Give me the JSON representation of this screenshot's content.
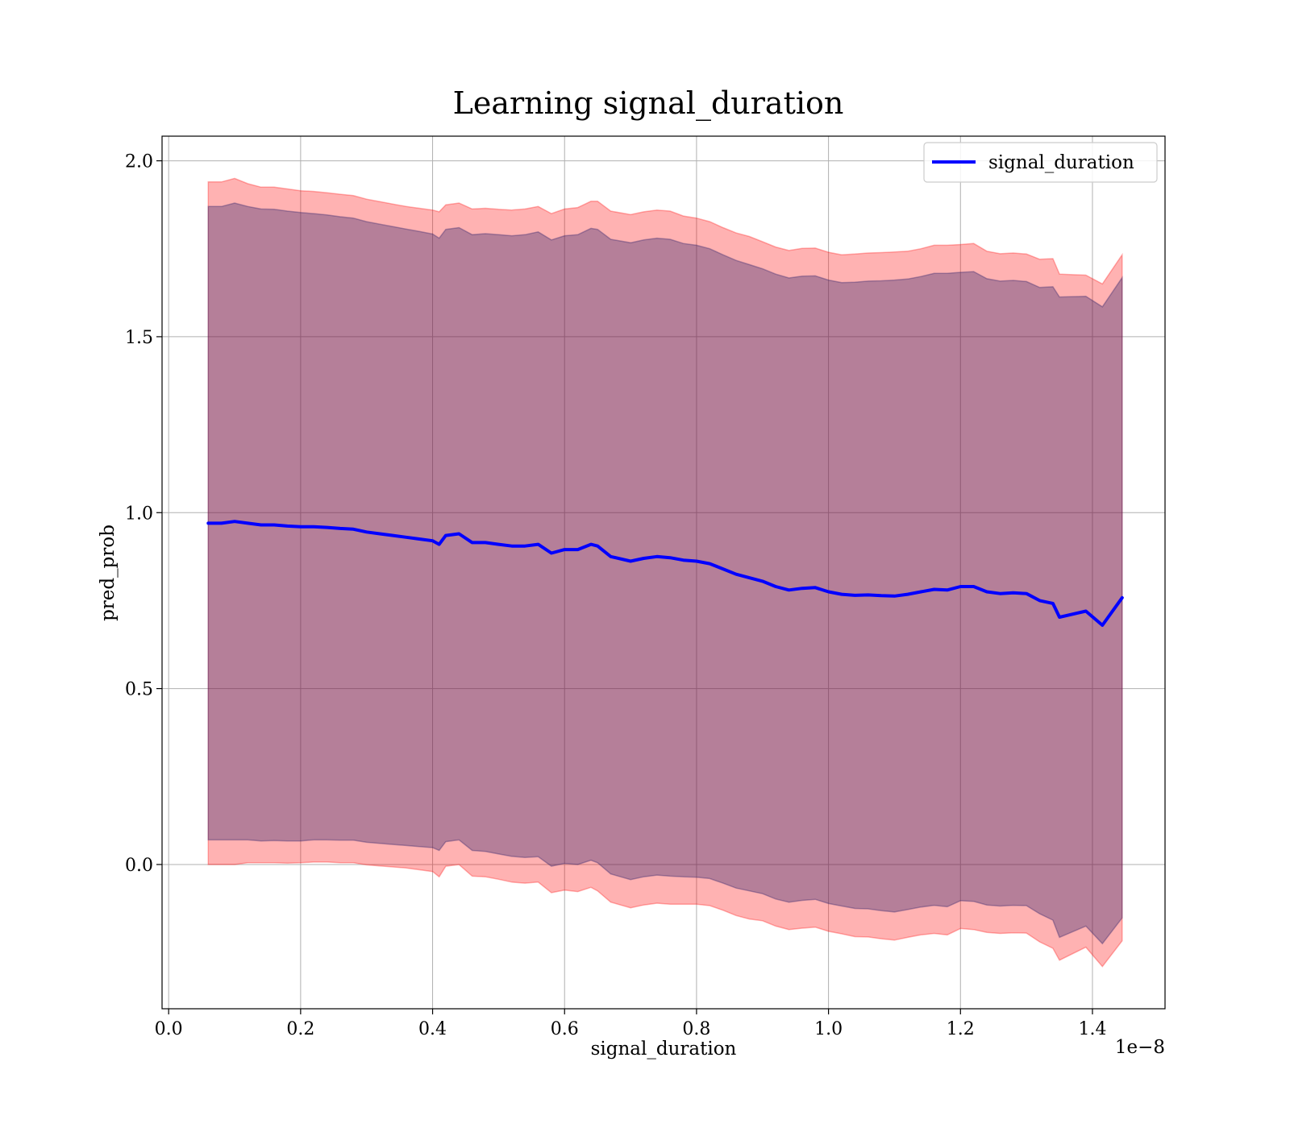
{
  "chart_data": {
    "type": "line",
    "title": "Learning signal_duration",
    "xlabel": "signal_duration",
    "ylabel": "pred_prob",
    "x_offset_label": "1e−8",
    "xlim": [
      -0.01,
      1.51
    ],
    "ylim": [
      -0.41,
      2.07
    ],
    "x_ticks": [
      0.0,
      0.2,
      0.4,
      0.6,
      0.8,
      1.0,
      1.2,
      1.4
    ],
    "x_tick_labels": [
      "0.0",
      "0.2",
      "0.4",
      "0.6",
      "0.8",
      "1.0",
      "1.2",
      "1.4"
    ],
    "y_ticks": [
      0.0,
      0.5,
      1.0,
      1.5,
      2.0
    ],
    "y_tick_labels": [
      "0.0",
      "0.5",
      "1.0",
      "1.5",
      "2.0"
    ],
    "grid": true,
    "legend_position": "top-right",
    "x": [
      0.06,
      0.08,
      0.1,
      0.12,
      0.14,
      0.16,
      0.18,
      0.2,
      0.22,
      0.24,
      0.26,
      0.28,
      0.3,
      0.32,
      0.34,
      0.36,
      0.38,
      0.4,
      0.41,
      0.42,
      0.44,
      0.46,
      0.48,
      0.5,
      0.52,
      0.54,
      0.56,
      0.58,
      0.6,
      0.62,
      0.64,
      0.65,
      0.67,
      0.7,
      0.72,
      0.74,
      0.76,
      0.78,
      0.8,
      0.82,
      0.84,
      0.86,
      0.88,
      0.9,
      0.92,
      0.94,
      0.96,
      0.98,
      1.0,
      1.02,
      1.04,
      1.06,
      1.08,
      1.1,
      1.12,
      1.14,
      1.16,
      1.18,
      1.2,
      1.22,
      1.24,
      1.26,
      1.28,
      1.3,
      1.32,
      1.34,
      1.35,
      1.39,
      1.415,
      1.445
    ],
    "series": [
      {
        "name": "signal_duration",
        "color": "#0000ff",
        "values": [
          0.97,
          0.97,
          0.975,
          0.97,
          0.965,
          0.965,
          0.962,
          0.96,
          0.96,
          0.958,
          0.955,
          0.953,
          0.945,
          0.94,
          0.935,
          0.93,
          0.925,
          0.92,
          0.91,
          0.935,
          0.94,
          0.915,
          0.915,
          0.91,
          0.905,
          0.905,
          0.91,
          0.885,
          0.895,
          0.895,
          0.91,
          0.905,
          0.875,
          0.862,
          0.87,
          0.875,
          0.872,
          0.865,
          0.862,
          0.855,
          0.84,
          0.825,
          0.815,
          0.805,
          0.79,
          0.78,
          0.785,
          0.787,
          0.775,
          0.768,
          0.765,
          0.766,
          0.764,
          0.763,
          0.768,
          0.775,
          0.782,
          0.78,
          0.79,
          0.79,
          0.775,
          0.77,
          0.772,
          0.77,
          0.75,
          0.742,
          0.703,
          0.72,
          0.68,
          0.758
        ]
      }
    ],
    "bands": [
      {
        "color": "#ff0000",
        "opacity": 0.3,
        "half_width": [
          0.97,
          0.97,
          0.975,
          0.965,
          0.96,
          0.96,
          0.958,
          0.955,
          0.953,
          0.951,
          0.95,
          0.948,
          0.946,
          0.944,
          0.942,
          0.94,
          0.94,
          0.94,
          0.945,
          0.94,
          0.94,
          0.948,
          0.95,
          0.952,
          0.955,
          0.958,
          0.96,
          0.965,
          0.968,
          0.972,
          0.975,
          0.98,
          0.982,
          0.985,
          0.985,
          0.985,
          0.985,
          0.978,
          0.975,
          0.972,
          0.97,
          0.97,
          0.97,
          0.965,
          0.965,
          0.965,
          0.966,
          0.965,
          0.965,
          0.965,
          0.97,
          0.972,
          0.975,
          0.978,
          0.975,
          0.975,
          0.978,
          0.98,
          0.972,
          0.975,
          0.968,
          0.966,
          0.966,
          0.965,
          0.97,
          0.98,
          0.975,
          0.955,
          0.97,
          0.975
        ]
      },
      {
        "color": "#2a1f6b",
        "opacity": 0.35,
        "half_width": [
          0.9,
          0.9,
          0.905,
          0.9,
          0.898,
          0.897,
          0.895,
          0.893,
          0.89,
          0.888,
          0.886,
          0.884,
          0.882,
          0.88,
          0.878,
          0.876,
          0.874,
          0.872,
          0.87,
          0.87,
          0.87,
          0.875,
          0.878,
          0.88,
          0.882,
          0.885,
          0.888,
          0.89,
          0.892,
          0.895,
          0.898,
          0.9,
          0.902,
          0.905,
          0.905,
          0.905,
          0.905,
          0.9,
          0.898,
          0.895,
          0.893,
          0.892,
          0.89,
          0.888,
          0.888,
          0.887,
          0.887,
          0.886,
          0.886,
          0.886,
          0.89,
          0.892,
          0.895,
          0.898,
          0.896,
          0.896,
          0.898,
          0.9,
          0.893,
          0.895,
          0.89,
          0.888,
          0.888,
          0.887,
          0.89,
          0.9,
          0.91,
          0.895,
          0.905,
          0.91
        ]
      }
    ]
  }
}
